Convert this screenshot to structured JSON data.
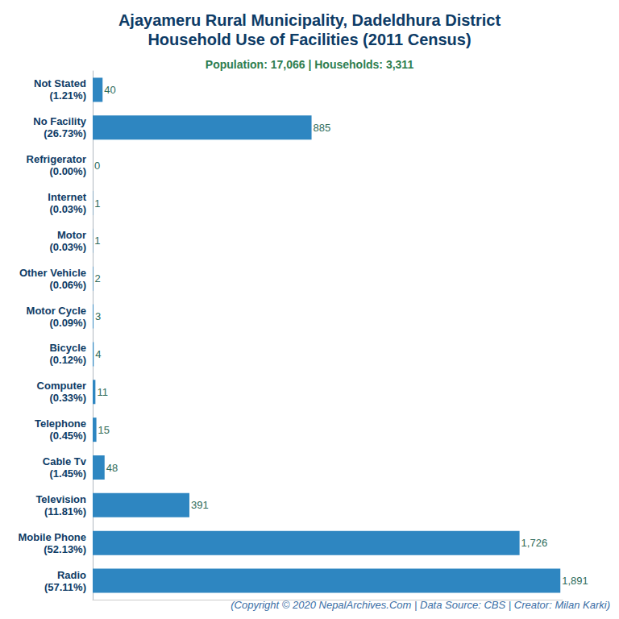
{
  "chart_data": {
    "type": "bar",
    "orientation": "horizontal",
    "title": "Ajayameru Rural Municipality, Dadeldhura District\nHousehold Use of Facilities (2011 Census)",
    "subtitle": "Population: 17,066 | Households: 3,311",
    "annotation": "(Copyright © 2020 NepalArchives.Com | Data Source: CBS | Creator: Milan Karki)",
    "categories": [
      "Not Stated\n(1.21%)",
      "No Facility\n(26.73%)",
      "Refrigerator\n(0.00%)",
      "Internet\n(0.03%)",
      "Motor\n(0.03%)",
      "Other Vehicle\n(0.06%)",
      "Motor Cycle\n(0.09%)",
      "Bicycle\n(0.12%)",
      "Computer\n(0.33%)",
      "Telephone\n(0.45%)",
      "Cable Tv\n(1.45%)",
      "Television\n(11.81%)",
      "Mobile Phone\n(52.13%)",
      "Radio\n(57.11%)"
    ],
    "values": [
      40,
      885,
      0,
      1,
      1,
      2,
      3,
      4,
      11,
      15,
      48,
      391,
      1726,
      1891
    ],
    "value_labels": [
      "40",
      "885",
      "0",
      "1",
      "1",
      "2",
      "3",
      "4",
      "11",
      "15",
      "48",
      "391",
      "1,726",
      "1,891"
    ],
    "color": "#2e86c1",
    "xlim": [
      0,
      1900
    ],
    "data_labels": true,
    "tick_labels": "y",
    "grid": false
  }
}
